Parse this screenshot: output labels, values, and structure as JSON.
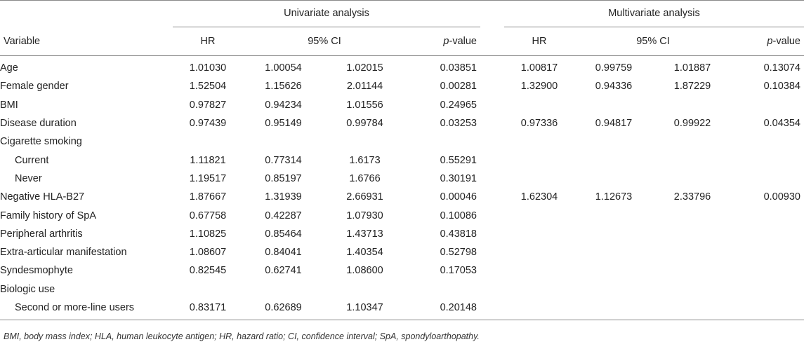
{
  "header": {
    "univariate_title": "Univariate analysis",
    "multivariate_title": "Multivariate analysis",
    "variable": "Variable",
    "hr": "HR",
    "ci": "95% CI",
    "p_italic": "p",
    "p_rest": "-value"
  },
  "rows": [
    {
      "label": "Age",
      "sub": false,
      "u": [
        "1.01030",
        "1.00054",
        "1.02015",
        "0.03851"
      ],
      "m": [
        "1.00817",
        "0.99759",
        "1.01887",
        "0.13074"
      ]
    },
    {
      "label": "Female gender",
      "sub": false,
      "u": [
        "1.52504",
        "1.15626",
        "2.01144",
        "0.00281"
      ],
      "m": [
        "1.32900",
        "0.94336",
        "1.87229",
        "0.10384"
      ]
    },
    {
      "label": "BMI",
      "sub": false,
      "u": [
        "0.97827",
        "0.94234",
        "1.01556",
        "0.24965"
      ],
      "m": [
        "",
        "",
        "",
        ""
      ]
    },
    {
      "label": "Disease duration",
      "sub": false,
      "u": [
        "0.97439",
        "0.95149",
        "0.99784",
        "0.03253"
      ],
      "m": [
        "0.97336",
        "0.94817",
        "0.99922",
        "0.04354"
      ]
    },
    {
      "label": "Cigarette smoking",
      "sub": false,
      "u": [
        "",
        "",
        "",
        ""
      ],
      "m": [
        "",
        "",
        "",
        ""
      ]
    },
    {
      "label": "Current",
      "sub": true,
      "u": [
        "1.11821",
        "0.77314",
        "1.6173",
        "0.55291"
      ],
      "m": [
        "",
        "",
        "",
        ""
      ]
    },
    {
      "label": "Never",
      "sub": true,
      "u": [
        "1.19517",
        "0.85197",
        "1.6766",
        "0.30191"
      ],
      "m": [
        "",
        "",
        "",
        ""
      ]
    },
    {
      "label": "Negative HLA-B27",
      "sub": false,
      "u": [
        "1.87667",
        "1.31939",
        "2.66931",
        "0.00046"
      ],
      "m": [
        "1.62304",
        "1.12673",
        "2.33796",
        "0.00930"
      ]
    },
    {
      "label": "Family history of SpA",
      "sub": false,
      "u": [
        "0.67758",
        "0.42287",
        "1.07930",
        "0.10086"
      ],
      "m": [
        "",
        "",
        "",
        ""
      ]
    },
    {
      "label": "Peripheral arthritis",
      "sub": false,
      "u": [
        "1.10825",
        "0.85464",
        "1.43713",
        "0.43818"
      ],
      "m": [
        "",
        "",
        "",
        ""
      ]
    },
    {
      "label": "Extra-articular manifestation",
      "sub": false,
      "u": [
        "1.08607",
        "0.84041",
        "1.40354",
        "0.52798"
      ],
      "m": [
        "",
        "",
        "",
        ""
      ]
    },
    {
      "label": "Syndesmophyte",
      "sub": false,
      "u": [
        "0.82545",
        "0.62741",
        "1.08600",
        "0.17053"
      ],
      "m": [
        "",
        "",
        "",
        ""
      ]
    },
    {
      "label": "Biologic use",
      "sub": false,
      "u": [
        "",
        "",
        "",
        ""
      ],
      "m": [
        "",
        "",
        "",
        ""
      ]
    },
    {
      "label": "Second or more-line users",
      "sub": true,
      "u": [
        "0.83171",
        "0.62689",
        "1.10347",
        "0.20148"
      ],
      "m": [
        "",
        "",
        "",
        ""
      ]
    }
  ],
  "footnote": "BMI, body mass index; HLA, human leukocyte antigen; HR, hazard ratio; CI, confidence interval; SpA, spondyloarthopathy."
}
